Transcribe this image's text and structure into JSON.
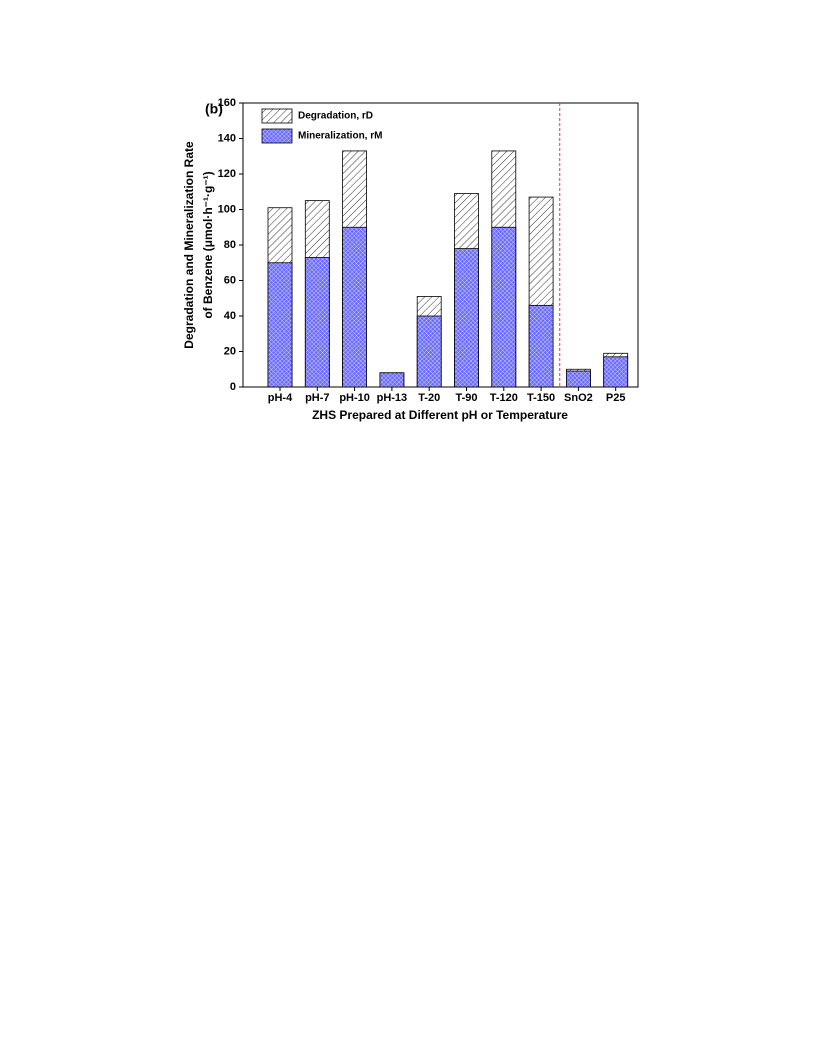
{
  "chart_data": {
    "type": "overlay_bar",
    "annotation": "(b)",
    "x_label": "ZHS Prepared at Different  pH or Temperature",
    "y_label": [
      "Degradation and Mineralization Rate",
      "of Benzene (μmol·h⁻¹·g⁻¹)"
    ],
    "categories": [
      "pH-4",
      "pH-7",
      "pH-10",
      "pH-13",
      "T-20",
      "T-90",
      "T-120",
      "T-150",
      "SnO2",
      "P25"
    ],
    "series": [
      {
        "name": "Degradation, rD",
        "color": "#c8c8c8",
        "pattern": "hatch",
        "values": [
          101,
          105,
          133,
          8,
          51,
          109,
          133,
          107,
          10,
          19
        ]
      },
      {
        "name": "Mineralization, rM",
        "color": "#6a6aff",
        "pattern": "crosshatch",
        "values": [
          70,
          73,
          90,
          8,
          40,
          78,
          90,
          46,
          9,
          17
        ]
      }
    ],
    "ylim": [
      0,
      160
    ],
    "yticks": [
      0,
      20,
      40,
      60,
      80,
      100,
      120,
      140,
      160
    ],
    "legend": "upper left"
  }
}
